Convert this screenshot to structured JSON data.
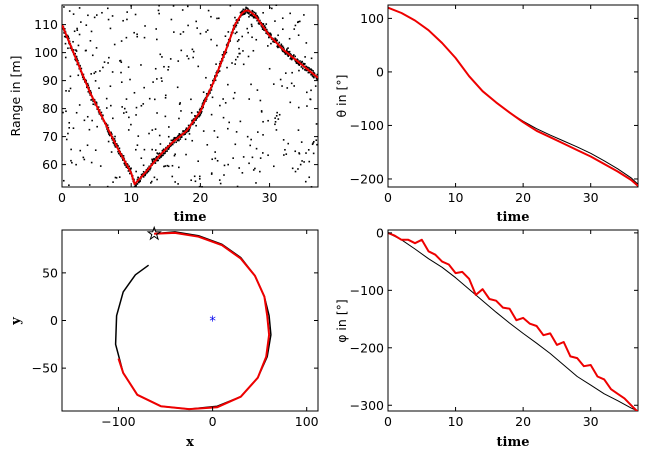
{
  "figure": {
    "panels": {
      "range": {
        "xlabel": "time",
        "ylabel_bold": "Range",
        "ylabel_rest": " in [m]",
        "xticks": [
          "0",
          "10",
          "20",
          "30"
        ],
        "yticks": [
          "60",
          "70",
          "80",
          "90",
          "100",
          "110"
        ]
      },
      "theta": {
        "xlabel": "time",
        "ylabel_bold": "θ",
        "ylabel_rest": " in [°]",
        "xticks": [
          "0",
          "10",
          "20",
          "30"
        ],
        "yticks": [
          "-200",
          "-100",
          "0",
          "100"
        ]
      },
      "xy": {
        "xlabel": "x",
        "ylabel": "y",
        "xticks": [
          "-100",
          "0",
          "100"
        ],
        "yticks": [
          "-50",
          "0",
          "50"
        ]
      },
      "phi": {
        "xlabel": "time",
        "ylabel_bold": "φ",
        "ylabel_rest": " in [°]",
        "xticks": [
          "0",
          "10",
          "20",
          "30"
        ],
        "yticks": [
          "-300",
          "-200",
          "-100",
          "0"
        ]
      }
    }
  },
  "chart_data": [
    {
      "id": "range",
      "type": "scatter",
      "xlabel": "time",
      "ylabel": "Range in [m]",
      "xlim": [
        0,
        37
      ],
      "ylim": [
        52,
        117
      ],
      "grid": false,
      "clutter": {
        "count": 420,
        "marker": ".",
        "color": "#000000",
        "distribution": "uniform over axes"
      },
      "series": [
        {
          "role": "estimate",
          "color": "#000000",
          "style": "dense dots",
          "noise": 1.2,
          "x": [
            0,
            2,
            4,
            6,
            8,
            10,
            10.5,
            12,
            14,
            16,
            18,
            20,
            22,
            24,
            25,
            26,
            26.5,
            27,
            28,
            30,
            32,
            34,
            36,
            37
          ],
          "y": [
            110,
            98,
            86,
            76,
            66,
            57,
            53,
            57,
            63,
            68,
            72,
            79,
            90,
            103,
            110,
            114,
            115,
            115,
            113,
            106,
            101,
            97,
            93,
            91
          ]
        },
        {
          "role": "truth",
          "color": "#ee0000",
          "style": "line",
          "x": [
            0,
            2,
            4,
            6,
            8,
            10,
            10.5,
            12,
            14,
            16,
            18,
            20,
            22,
            24,
            25,
            26,
            26.5,
            27,
            28,
            30,
            32,
            34,
            36,
            37
          ],
          "y": [
            110,
            98,
            86,
            76,
            66,
            57,
            53,
            57,
            63,
            68,
            72,
            79,
            90,
            103,
            110,
            114,
            115,
            115,
            113,
            106,
            101,
            97,
            93,
            91
          ]
        }
      ]
    },
    {
      "id": "theta",
      "type": "line",
      "xlabel": "time",
      "ylabel": "θ in [°]",
      "xlim": [
        0,
        37
      ],
      "ylim": [
        -215,
        125
      ],
      "grid": false,
      "series": [
        {
          "role": "truth",
          "color": "#000000",
          "width": 1,
          "x": [
            0,
            2,
            4,
            6,
            8,
            10,
            12,
            14,
            16,
            18,
            20,
            22,
            24,
            26,
            28,
            30,
            32,
            34,
            36,
            37
          ],
          "y": [
            120,
            110,
            96,
            78,
            54,
            26,
            -8,
            -36,
            -57,
            -76,
            -92,
            -106,
            -118,
            -129,
            -140,
            -152,
            -166,
            -181,
            -198,
            -210
          ]
        },
        {
          "role": "estimate",
          "color": "#ee0000",
          "width": 2,
          "x": [
            0,
            2,
            4,
            6,
            8,
            10,
            12,
            14,
            16,
            18,
            20,
            22,
            24,
            26,
            28,
            30,
            32,
            34,
            36,
            37
          ],
          "y": [
            120,
            110,
            96,
            78,
            54,
            26,
            -8,
            -36,
            -57,
            -76,
            -94,
            -110,
            -122,
            -134,
            -146,
            -158,
            -172,
            -186,
            -202,
            -213
          ]
        }
      ]
    },
    {
      "id": "xy",
      "type": "line",
      "xlabel": "x",
      "ylabel": "y",
      "xlim": [
        -160,
        112
      ],
      "ylim": [
        -95,
        95
      ],
      "grid": false,
      "markers": [
        {
          "label": "start",
          "symbol": "pentagram",
          "color": "#000000",
          "x": -62,
          "y": 91
        },
        {
          "label": "sensor",
          "symbol": "*",
          "color": "#0000ee",
          "x": 0,
          "y": 0
        }
      ],
      "series": [
        {
          "role": "truth",
          "color": "#000000",
          "width": 1.5,
          "x": [
            -62,
            -40,
            -15,
            10,
            30,
            45,
            55,
            60,
            62,
            58,
            48,
            30,
            5,
            -25,
            -55,
            -80,
            -95,
            -103,
            -102,
            -95,
            -82,
            -68
          ],
          "y": [
            91,
            93,
            89,
            80,
            66,
            47,
            25,
            5,
            -15,
            -38,
            -60,
            -80,
            -90,
            -93,
            -90,
            -78,
            -55,
            -25,
            5,
            30,
            48,
            58
          ]
        },
        {
          "role": "estimate",
          "color": "#ee0000",
          "width": 2,
          "x": [
            -62,
            -40,
            -15,
            10,
            30,
            45,
            55,
            58,
            60,
            57,
            48,
            30,
            5,
            -25,
            -55,
            -80,
            -95,
            -100
          ],
          "y": [
            91,
            92,
            88,
            79,
            65,
            47,
            25,
            5,
            -15,
            -38,
            -60,
            -80,
            -91,
            -93,
            -90,
            -78,
            -55,
            -40
          ]
        }
      ]
    },
    {
      "id": "phi",
      "type": "line",
      "xlabel": "time",
      "ylabel": "φ in [°]",
      "xlim": [
        0,
        37
      ],
      "ylim": [
        -310,
        5
      ],
      "grid": false,
      "series": [
        {
          "role": "truth",
          "color": "#000000",
          "width": 1,
          "x": [
            0,
            2,
            4,
            6,
            8,
            10,
            12,
            14,
            16,
            18,
            20,
            22,
            24,
            26,
            28,
            30,
            32,
            34,
            36,
            37
          ],
          "y": [
            0,
            -12,
            -28,
            -45,
            -60,
            -78,
            -98,
            -118,
            -138,
            -157,
            -175,
            -192,
            -210,
            -230,
            -250,
            -265,
            -280,
            -292,
            -305,
            -310
          ]
        },
        {
          "role": "estimate",
          "color": "#ee0000",
          "width": 2,
          "x": [
            0,
            1,
            2,
            3,
            4,
            5,
            6,
            7,
            8,
            9,
            10,
            11,
            12,
            13,
            14,
            15,
            16,
            17,
            18,
            19,
            20,
            21,
            22,
            23,
            24,
            25,
            26,
            27,
            28,
            29,
            30,
            31,
            32,
            33,
            34,
            35,
            36,
            37
          ],
          "y": [
            0,
            -5,
            -12,
            -12,
            -18,
            -12,
            -32,
            -38,
            -50,
            -55,
            -70,
            -68,
            -80,
            -108,
            -98,
            -115,
            -118,
            -130,
            -132,
            -152,
            -148,
            -158,
            -162,
            -178,
            -175,
            -195,
            -190,
            -215,
            -218,
            -232,
            -230,
            -250,
            -255,
            -272,
            -280,
            -288,
            -300,
            -312
          ]
        }
      ]
    }
  ]
}
